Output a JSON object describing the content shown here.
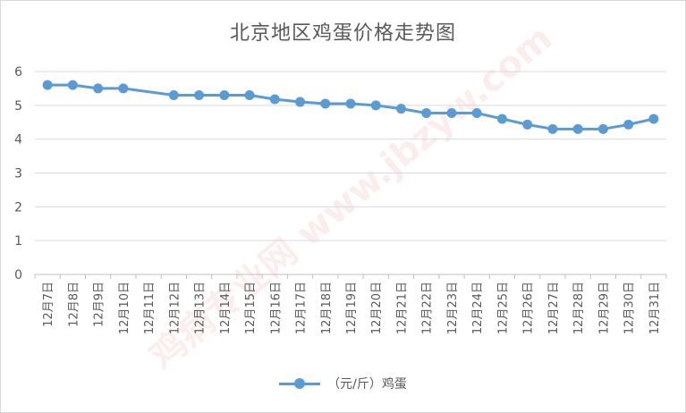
{
  "chart_data": {
    "type": "line",
    "title": "北京地区鸡蛋价格走势图",
    "categories": [
      "12月7日",
      "12月8日",
      "12月9日",
      "12月10日",
      "12月11日",
      "12月12日",
      "12月13日",
      "12月14日",
      "12月15日",
      "12月16日",
      "12月17日",
      "12月18日",
      "12月19日",
      "12月20日",
      "12月21日",
      "12月22日",
      "12月23日",
      "12月24日",
      "12月25日",
      "12月26日",
      "12月27日",
      "12月28日",
      "12月29日",
      "12月30日",
      "12月31日"
    ],
    "series": [
      {
        "name": "（元/斤）鸡蛋",
        "color": "#5b9bd5",
        "values": [
          5.6,
          5.6,
          5.5,
          5.5,
          null,
          5.3,
          5.3,
          5.3,
          5.3,
          5.18,
          5.1,
          5.05,
          5.05,
          5.0,
          4.9,
          4.77,
          4.77,
          4.77,
          4.6,
          4.43,
          4.3,
          4.3,
          4.3,
          4.43,
          4.6
        ]
      }
    ],
    "ylim": [
      0,
      6
    ],
    "yticks": [
      0,
      1,
      2,
      3,
      4,
      5,
      6
    ],
    "grid": true,
    "legend": "bottom"
  },
  "watermark": "鸡病专业网 www.jbzyw.com"
}
